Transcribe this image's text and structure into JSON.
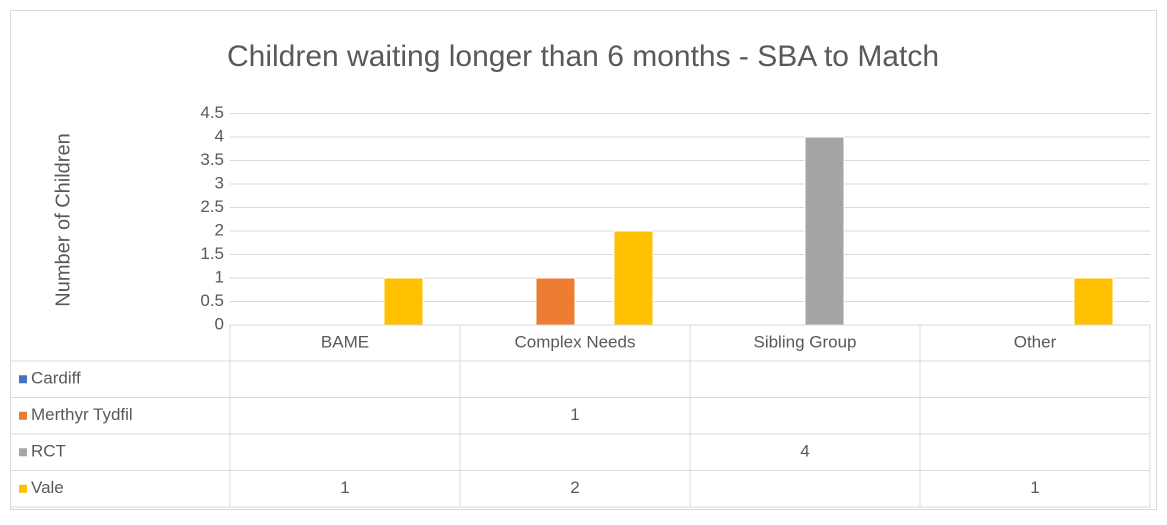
{
  "chart_data": {
    "type": "bar",
    "title": "Children waiting longer than 6 months - SBA to Match",
    "y_label": "Number of Children",
    "categories": [
      "BAME",
      "Complex Needs",
      "Sibling Group",
      "Other"
    ],
    "series": [
      {
        "name": "Cardiff",
        "color": "#4472c4",
        "values": [
          null,
          null,
          null,
          null
        ]
      },
      {
        "name": "Merthyr Tydfil",
        "color": "#ed7d31",
        "values": [
          null,
          1,
          null,
          null
        ]
      },
      {
        "name": "RCT",
        "color": "#a5a5a5",
        "values": [
          null,
          null,
          4,
          null
        ]
      },
      {
        "name": "Vale",
        "color": "#ffc000",
        "values": [
          1,
          2,
          null,
          1
        ]
      }
    ],
    "ylim": [
      0,
      4.5
    ],
    "yticks": [
      0,
      0.5,
      1,
      1.5,
      2,
      2.5,
      3,
      3.5,
      4,
      4.5
    ],
    "grid": true
  }
}
